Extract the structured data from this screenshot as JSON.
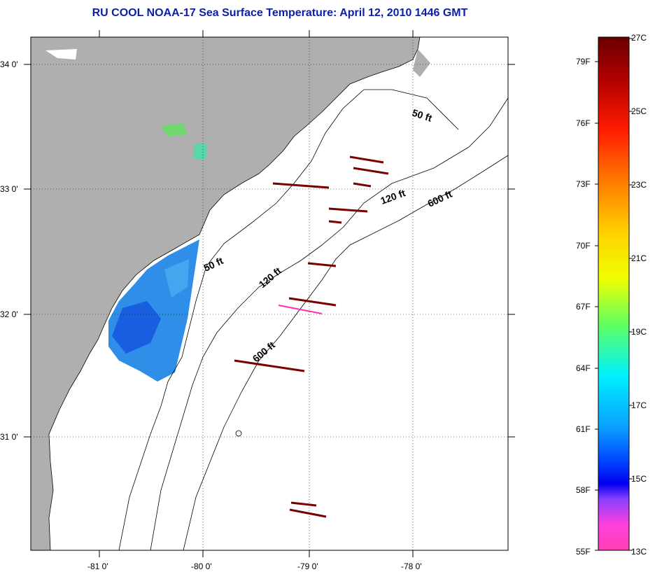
{
  "title": "RU COOL  NOAA-17  Sea Surface Temperature:  April 12, 2010 1446 GMT",
  "map": {
    "lat_labels": [
      "34 0'",
      "33 0'",
      "32 0'",
      "31 0'"
    ],
    "lon_labels": [
      "-81 0'",
      "-80 0'",
      "-79 0'",
      "-78 0'"
    ],
    "isobaths": [
      "50 ft",
      "120 ft",
      "600 ft"
    ],
    "colors": {
      "land": "#afafaf",
      "ocean": "#ffffff",
      "sst_patch": "#2f8fe8",
      "warm_streak": "#7a0000",
      "cold_streak": "#ff2fb0"
    }
  },
  "colorbar": {
    "celsius": [
      "27C",
      "25C",
      "23C",
      "21C",
      "19C",
      "17C",
      "15C",
      "13C"
    ],
    "fahrenheit": [
      "79F",
      "76F",
      "73F",
      "70F",
      "67F",
      "64F",
      "61F",
      "58F",
      "55F"
    ]
  }
}
